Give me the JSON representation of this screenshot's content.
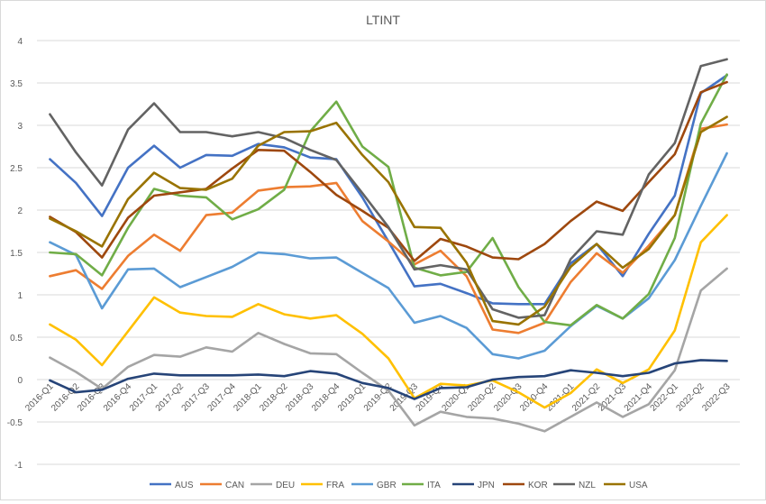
{
  "chart_data": {
    "type": "line",
    "title": "LTINT",
    "xlabel": "",
    "ylabel": "",
    "ylim": [
      -1,
      4
    ],
    "yticks": [
      -1,
      -0.5,
      0,
      0.5,
      1,
      1.5,
      2,
      2.5,
      3,
      3.5,
      4
    ],
    "ytick_labels": [
      "-1",
      "-0.5",
      "0",
      "0.5",
      "1",
      "1.5",
      "2",
      "2.5",
      "3",
      "3.5",
      "4"
    ],
    "grid": true,
    "legend_position": "bottom",
    "categories": [
      "2016-Q1",
      "2016-Q2",
      "2016-Q3",
      "2016-Q4",
      "2017-Q1",
      "2017-Q2",
      "2017-Q3",
      "2017-Q4",
      "2018-Q1",
      "2018-Q2",
      "2018-Q3",
      "2018-Q4",
      "2019-Q1",
      "2019-Q2",
      "2019-Q3",
      "2019-Q4",
      "2020-Q1",
      "2020-Q2",
      "2020-Q3",
      "2020-Q4",
      "2021-Q1",
      "2021-Q2",
      "2021-Q3",
      "2021-Q4",
      "2022-Q1",
      "2022-Q2",
      "2022-Q3"
    ],
    "series": [
      {
        "name": "AUS",
        "color": "#4472c4",
        "values": [
          2.6,
          2.32,
          1.93,
          2.5,
          2.76,
          2.5,
          2.65,
          2.64,
          2.78,
          2.74,
          2.62,
          2.6,
          2.15,
          1.63,
          1.1,
          1.13,
          1.02,
          0.9,
          0.89,
          0.89,
          1.37,
          1.6,
          1.22,
          1.72,
          2.17,
          3.38,
          3.59
        ]
      },
      {
        "name": "CAN",
        "color": "#ed7d31",
        "values": [
          1.22,
          1.29,
          1.07,
          1.46,
          1.71,
          1.52,
          1.94,
          1.97,
          2.23,
          2.27,
          2.28,
          2.32,
          1.87,
          1.63,
          1.36,
          1.52,
          1.22,
          0.59,
          0.55,
          0.67,
          1.15,
          1.49,
          1.26,
          1.58,
          1.94,
          2.96,
          3.01
        ]
      },
      {
        "name": "DEU",
        "color": "#a5a5a5",
        "values": [
          0.26,
          0.09,
          -0.11,
          0.15,
          0.29,
          0.27,
          0.38,
          0.33,
          0.55,
          0.42,
          0.31,
          0.3,
          0.08,
          -0.13,
          -0.54,
          -0.38,
          -0.44,
          -0.46,
          -0.52,
          -0.61,
          -0.44,
          -0.27,
          -0.44,
          -0.29,
          0.11,
          1.05,
          1.31
        ]
      },
      {
        "name": "FRA",
        "color": "#ffc000",
        "values": [
          0.65,
          0.47,
          0.17,
          0.57,
          0.97,
          0.79,
          0.75,
          0.74,
          0.89,
          0.77,
          0.72,
          0.76,
          0.54,
          0.25,
          -0.22,
          -0.05,
          -0.07,
          -0.01,
          -0.15,
          -0.33,
          -0.16,
          0.12,
          -0.04,
          0.12,
          0.58,
          1.62,
          1.94
        ]
      },
      {
        "name": "GBR",
        "color": "#5b9bd5",
        "values": [
          1.62,
          1.47,
          0.84,
          1.3,
          1.31,
          1.09,
          1.21,
          1.33,
          1.5,
          1.48,
          1.43,
          1.44,
          1.26,
          1.08,
          0.67,
          0.75,
          0.61,
          0.3,
          0.25,
          0.34,
          0.63,
          0.87,
          0.72,
          0.96,
          1.41,
          2.05,
          2.67
        ]
      },
      {
        "name": "ITA",
        "color": "#70ad47",
        "values": [
          1.5,
          1.48,
          1.23,
          1.79,
          2.25,
          2.17,
          2.15,
          1.89,
          2.01,
          2.24,
          2.93,
          3.28,
          2.75,
          2.51,
          1.32,
          1.23,
          1.27,
          1.67,
          1.09,
          0.68,
          0.64,
          0.88,
          0.72,
          1.01,
          1.67,
          3.02,
          3.6
        ]
      },
      {
        "name": "JPN",
        "color": "#264478",
        "values": [
          -0.01,
          -0.15,
          -0.12,
          0.01,
          0.07,
          0.05,
          0.05,
          0.05,
          0.06,
          0.04,
          0.1,
          0.07,
          -0.04,
          -0.1,
          -0.23,
          -0.1,
          -0.09,
          0.0,
          0.03,
          0.04,
          0.11,
          0.08,
          0.04,
          0.08,
          0.19,
          0.23,
          0.22
        ]
      },
      {
        "name": "KOR",
        "color": "#9e480e",
        "values": [
          1.92,
          1.74,
          1.44,
          1.91,
          2.17,
          2.21,
          2.25,
          2.49,
          2.71,
          2.7,
          2.45,
          2.18,
          1.99,
          1.79,
          1.4,
          1.66,
          1.57,
          1.44,
          1.42,
          1.6,
          1.87,
          2.1,
          1.99,
          2.33,
          2.66,
          3.39,
          3.51
        ]
      },
      {
        "name": "NZL",
        "color": "#636363",
        "values": [
          3.13,
          2.68,
          2.29,
          2.95,
          3.26,
          2.92,
          2.92,
          2.87,
          2.92,
          2.85,
          2.71,
          2.59,
          2.2,
          1.8,
          1.3,
          1.35,
          1.3,
          0.83,
          0.73,
          0.76,
          1.42,
          1.75,
          1.71,
          2.42,
          2.79,
          3.7,
          3.78
        ]
      },
      {
        "name": "USA",
        "color": "#997300",
        "values": [
          1.9,
          1.75,
          1.57,
          2.13,
          2.44,
          2.26,
          2.24,
          2.37,
          2.76,
          2.92,
          2.93,
          3.03,
          2.65,
          2.33,
          1.8,
          1.79,
          1.38,
          0.69,
          0.65,
          0.86,
          1.33,
          1.6,
          1.32,
          1.54,
          1.94,
          2.92,
          3.1
        ]
      }
    ]
  }
}
